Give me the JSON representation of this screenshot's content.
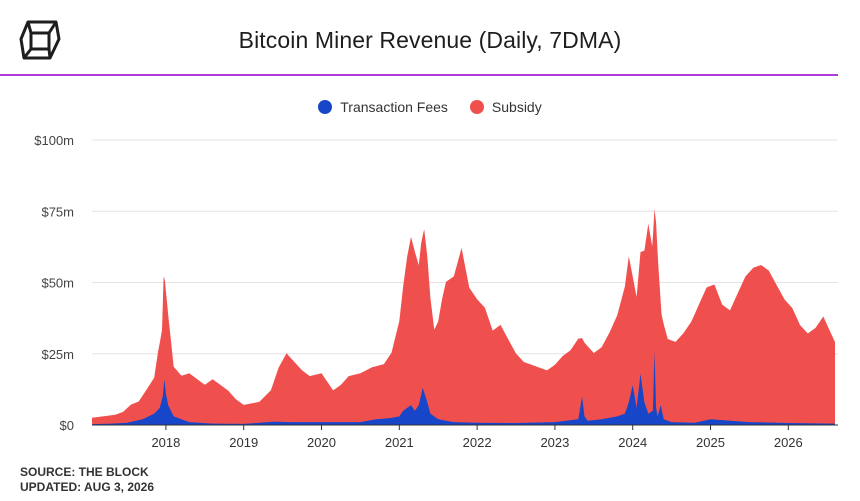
{
  "header": {
    "title": "Bitcoin Miner Revenue (Daily, 7DMA)",
    "logo_icon": "the-block-cube-icon"
  },
  "colors": {
    "fees": "#1846c9",
    "subsidy": "#f0504d",
    "divider": "#b03ad9",
    "grid": "#e3e3e3"
  },
  "chart_data": {
    "type": "area",
    "title": "Bitcoin Miner Revenue (Daily, 7DMA)",
    "stacked": true,
    "xlabel": "",
    "ylabel": "",
    "x_ticks": [
      "2018",
      "2019",
      "2020",
      "2021",
      "2022",
      "2023",
      "2024",
      "2025",
      "2026"
    ],
    "y_ticks": [
      "$0",
      "$25m",
      "$50m",
      "$75m",
      "$100m"
    ],
    "xlim": [
      2017.05,
      2026.6
    ],
    "ylim": [
      0,
      100
    ],
    "grid": true,
    "legend_position": "top-center",
    "series": [
      {
        "name": "Transaction Fees",
        "color": "#1846c9",
        "x": [
          2017.05,
          2017.3,
          2017.5,
          2017.7,
          2017.85,
          2017.92,
          2017.96,
          2017.98,
          2018.0,
          2018.03,
          2018.1,
          2018.3,
          2018.6,
          2019.0,
          2019.4,
          2019.6,
          2020.0,
          2020.3,
          2020.5,
          2020.7,
          2020.9,
          2021.0,
          2021.05,
          2021.1,
          2021.15,
          2021.2,
          2021.25,
          2021.3,
          2021.35,
          2021.4,
          2021.5,
          2021.7,
          2022.0,
          2022.5,
          2023.0,
          2023.3,
          2023.35,
          2023.38,
          2023.42,
          2023.6,
          2023.8,
          2023.9,
          2023.95,
          2024.0,
          2024.05,
          2024.1,
          2024.15,
          2024.2,
          2024.26,
          2024.28,
          2024.3,
          2024.32,
          2024.36,
          2024.4,
          2024.5,
          2024.8,
          2025.0,
          2025.5,
          2026.0,
          2026.6
        ],
        "values": [
          0.3,
          0.5,
          0.8,
          2.0,
          4.0,
          6.0,
          10.0,
          16.0,
          11.0,
          7.0,
          3.0,
          1.0,
          0.5,
          0.4,
          1.2,
          1.0,
          1.0,
          1.0,
          1.0,
          2.0,
          2.5,
          3.0,
          5.0,
          6.0,
          7.0,
          5.0,
          7.0,
          13.0,
          9.0,
          4.0,
          2.0,
          1.0,
          0.8,
          0.7,
          1.0,
          2.0,
          10.0,
          3.0,
          1.5,
          2.0,
          3.0,
          4.0,
          8.0,
          14.0,
          6.0,
          18.0,
          8.0,
          4.0,
          5.0,
          26.0,
          6.0,
          3.0,
          7.0,
          2.0,
          1.0,
          0.8,
          2.0,
          1.0,
          0.7,
          0.5
        ]
      },
      {
        "name": "Subsidy",
        "color": "#f0504d",
        "x": [
          2017.05,
          2017.2,
          2017.35,
          2017.45,
          2017.55,
          2017.65,
          2017.75,
          2017.85,
          2017.9,
          2017.95,
          2017.97,
          2017.99,
          2018.02,
          2018.06,
          2018.1,
          2018.2,
          2018.3,
          2018.4,
          2018.5,
          2018.6,
          2018.7,
          2018.8,
          2018.9,
          2019.0,
          2019.2,
          2019.35,
          2019.45,
          2019.55,
          2019.65,
          2019.75,
          2019.85,
          2020.0,
          2020.15,
          2020.25,
          2020.35,
          2020.5,
          2020.65,
          2020.8,
          2020.9,
          2021.0,
          2021.05,
          2021.1,
          2021.15,
          2021.2,
          2021.25,
          2021.28,
          2021.32,
          2021.36,
          2021.4,
          2021.45,
          2021.5,
          2021.55,
          2021.6,
          2021.7,
          2021.8,
          2021.85,
          2021.9,
          2022.0,
          2022.1,
          2022.2,
          2022.3,
          2022.4,
          2022.5,
          2022.6,
          2022.7,
          2022.8,
          2022.9,
          2023.0,
          2023.1,
          2023.2,
          2023.3,
          2023.4,
          2023.5,
          2023.6,
          2023.7,
          2023.8,
          2023.9,
          2023.95,
          2024.0,
          2024.05,
          2024.1,
          2024.15,
          2024.2,
          2024.25,
          2024.28,
          2024.3,
          2024.33,
          2024.37,
          2024.45,
          2024.55,
          2024.65,
          2024.75,
          2024.85,
          2024.95,
          2025.05,
          2025.15,
          2025.25,
          2025.35,
          2025.45,
          2025.55,
          2025.65,
          2025.75,
          2025.85,
          2025.95,
          2026.05,
          2026.15,
          2026.25,
          2026.35,
          2026.45,
          2026.55,
          2026.6
        ],
        "values": [
          2.5,
          3.0,
          3.5,
          4.5,
          7.0,
          8.0,
          12.0,
          16.0,
          25.0,
          32.0,
          50.0,
          48.0,
          40.0,
          30.0,
          20.0,
          17.0,
          18.0,
          16.0,
          14.0,
          16.0,
          14.0,
          12.0,
          9.0,
          7.0,
          8.0,
          12.0,
          20.0,
          25.0,
          22.0,
          19.0,
          17.0,
          18.0,
          12.0,
          14.0,
          17.0,
          18.0,
          20.0,
          21.0,
          25.0,
          36.0,
          48.0,
          58.0,
          65.0,
          60.0,
          55.0,
          62.0,
          67.0,
          58.0,
          44.0,
          33.0,
          36.0,
          44.0,
          50.0,
          52.0,
          62.0,
          55.0,
          48.0,
          44.0,
          41.0,
          33.0,
          35.0,
          30.0,
          25.0,
          22.0,
          21.0,
          20.0,
          19.0,
          21.0,
          24.0,
          26.0,
          30.0,
          28.0,
          25.0,
          27.0,
          32.0,
          38.0,
          48.0,
          58.0,
          50.0,
          44.0,
          58.0,
          60.0,
          70.0,
          62.0,
          72.0,
          70.0,
          55.0,
          38.0,
          30.0,
          29.0,
          32.0,
          36.0,
          42.0,
          48.0,
          49.0,
          42.0,
          40.0,
          46.0,
          52.0,
          55.0,
          56.0,
          54.0,
          49.0,
          44.0,
          41.0,
          35.0,
          32.0,
          34.0,
          38.0,
          32.0,
          29.0
        ]
      }
    ]
  },
  "footer": {
    "source": "SOURCE: THE BLOCK",
    "updated": "UPDATED: AUG 3, 2026"
  }
}
